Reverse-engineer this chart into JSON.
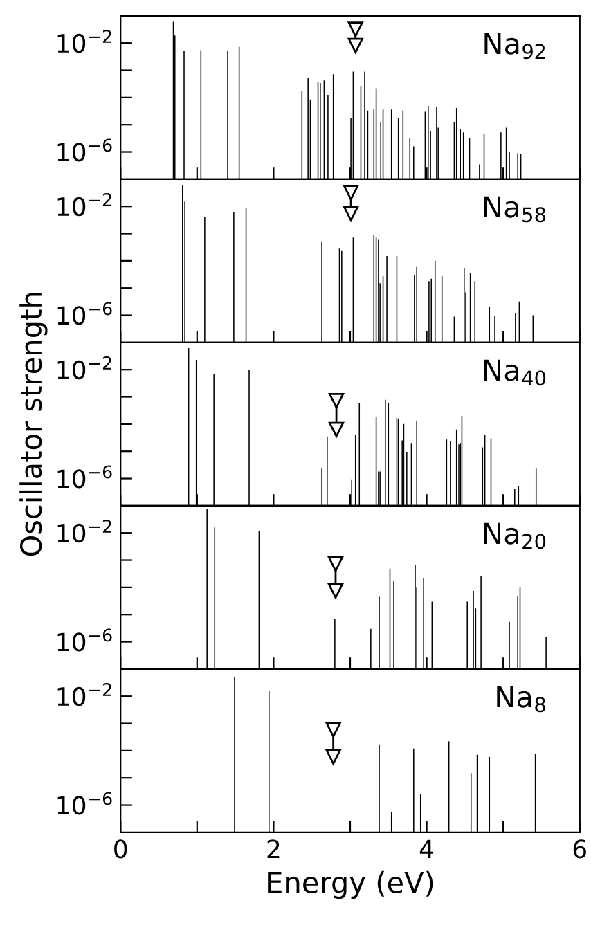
{
  "chart_data": [
    {
      "type": "bar",
      "annotations": [
        "Na$_{92}$"
      ],
      "xlim": [
        0,
        6
      ],
      "ylim": [
        1e-07,
        0.1
      ],
      "log": "y",
      "tick_labels": "y",
      "xticks": [
        {
          "value": 0,
          "label": null
        },
        {
          "value": 1,
          "label": null
        },
        {
          "value": 2,
          "label": null
        },
        {
          "value": 3,
          "label": null
        },
        {
          "value": 4,
          "label": null
        },
        {
          "value": 5,
          "label": null
        },
        {
          "value": 6,
          "label": null
        }
      ],
      "yticks": [
        {
          "value": 0.01,
          "label": "10$^{−2}$"
        },
        {
          "value": 0.001,
          "label": null
        },
        {
          "value": 0.0001,
          "label": null
        },
        {
          "value": 1e-05,
          "label": null
        },
        {
          "value": 1e-06,
          "label": "10$^{−6}$"
        }
      ],
      "series": [
        {
          "color": "#000000",
          "x": [
            0.69,
            0.71,
            0.83,
            1.05,
            1.4,
            1.55,
            2.37,
            2.45,
            2.48,
            2.58,
            2.61,
            2.66,
            2.71,
            2.78,
            3.01,
            3.04,
            3.14,
            3.19,
            3.23,
            3.31,
            3.34,
            3.4,
            3.43,
            3.54,
            3.63,
            3.69,
            3.78,
            3.83,
            3.98,
            4.02,
            4.05,
            4.13,
            4.15,
            4.36,
            4.39,
            4.44,
            4.48,
            4.56,
            4.69,
            4.75,
            4.97,
            5.04,
            5.08,
            5.19,
            5.23
          ],
          "values": [
            0.06,
            0.019,
            0.0051,
            0.0055,
            0.0051,
            0.0072,
            0.00017,
            0.00054,
            8.5e-05,
            0.00037,
            0.00034,
            0.00042,
            0.00012,
            0.00071,
            1.8e-05,
            0.00089,
            0.00025,
            0.00089,
            3.3e-05,
            3.6e-05,
            0.00022,
            1.2e-05,
            3.6e-05,
            3.6e-05,
            1.8e-05,
            3.3e-05,
            3.2e-06,
            1.6e-06,
            3e-05,
            4.9e-05,
            5.6e-06,
            4.4e-05,
            7.8e-06,
            1.2e-05,
            4.1e-05,
            6.9e-06,
            5.2e-06,
            3.2e-06,
            3.5e-07,
            4.8e-06,
            5.2e-06,
            7.8e-06,
            1e-06,
            9.1e-07,
            8.1e-07
          ]
        },
        {
          "type": "line",
          "marker": "triangle",
          "color": "#000000",
          "x": [
            3.07,
            3.07
          ],
          "values": [
            0.032,
            0.0081
          ]
        }
      ]
    },
    {
      "type": "bar",
      "annotations": [
        "Na$_{58}$"
      ],
      "xlim": [
        0,
        6
      ],
      "ylim": [
        1e-07,
        0.1
      ],
      "log": "y",
      "tick_labels": "y",
      "xticks": [
        {
          "value": 0,
          "label": null
        },
        {
          "value": 1,
          "label": null
        },
        {
          "value": 2,
          "label": null
        },
        {
          "value": 3,
          "label": null
        },
        {
          "value": 4,
          "label": null
        },
        {
          "value": 5,
          "label": null
        },
        {
          "value": 6,
          "label": null
        }
      ],
      "yticks": [
        {
          "value": 0.01,
          "label": "10$^{−2}$"
        },
        {
          "value": 0.001,
          "label": null
        },
        {
          "value": 0.0001,
          "label": null
        },
        {
          "value": 1e-05,
          "label": null
        },
        {
          "value": 1e-06,
          "label": "10$^{−6}$"
        }
      ],
      "series": [
        {
          "color": "#000000",
          "x": [
            0.81,
            0.84,
            1.1,
            1.48,
            1.64,
            2.63,
            2.86,
            2.89,
            3.04,
            3.31,
            3.34,
            3.37,
            3.39,
            3.43,
            3.48,
            3.61,
            3.84,
            3.87,
            4.03,
            4.06,
            4.11,
            4.2,
            4.36,
            4.49,
            4.51,
            4.57,
            4.63,
            4.82,
            4.89,
            5.16,
            5.21,
            5.39
          ],
          "values": [
            0.062,
            0.015,
            0.0041,
            0.006,
            0.0089,
            0.00049,
            0.00028,
            0.00023,
            0.00072,
            0.00087,
            0.00072,
            0.00059,
            1.5e-05,
            2.7e-05,
            0.00015,
            0.00015,
            3e-05,
            5.9e-05,
            1.8e-05,
            2.2e-05,
            0.0001,
            2.7e-05,
            8.9e-07,
            5.4e-05,
            6.9e-06,
            3.5e-05,
            1.8e-05,
            2e-06,
            9.3e-07,
            1.2e-06,
            3.2e-06,
            1e-06
          ]
        },
        {
          "type": "line",
          "marker": "triangle",
          "color": "#000000",
          "x": [
            3.01,
            3.01
          ],
          "values": [
            0.032,
            0.0054
          ]
        }
      ]
    },
    {
      "type": "bar",
      "annotations": [
        "Na$_{40}$"
      ],
      "ylabel": "Oscillator strength",
      "xlim": [
        0,
        6
      ],
      "ylim": [
        1e-07,
        0.1
      ],
      "log": "y",
      "tick_labels": "y",
      "xticks": [
        {
          "value": 0,
          "label": null
        },
        {
          "value": 1,
          "label": null
        },
        {
          "value": 2,
          "label": null
        },
        {
          "value": 3,
          "label": null
        },
        {
          "value": 4,
          "label": null
        },
        {
          "value": 5,
          "label": null
        },
        {
          "value": 6,
          "label": null
        }
      ],
      "yticks": [
        {
          "value": 0.01,
          "label": "10$^{−2}$"
        },
        {
          "value": 0.001,
          "label": null
        },
        {
          "value": 0.0001,
          "label": null
        },
        {
          "value": 1e-05,
          "label": null
        },
        {
          "value": 1e-06,
          "label": "10$^{−6}$"
        }
      ],
      "series": [
        {
          "color": "#000000",
          "x": [
            0.89,
            0.99,
            1.22,
            1.68,
            2.63,
            2.7,
            3.02,
            3.07,
            3.12,
            3.34,
            3.37,
            3.39,
            3.46,
            3.5,
            3.61,
            3.63,
            3.68,
            3.7,
            3.74,
            3.8,
            3.87,
            4.26,
            4.31,
            4.39,
            4.42,
            4.44,
            4.46,
            4.73,
            4.76,
            4.84,
            5.15,
            5.2,
            5.43
          ],
          "values": [
            0.062,
            0.023,
            0.0068,
            0.01,
            2.3e-06,
            3.5e-05,
            9.3e-07,
            4e-05,
            0.0006,
            0.00019,
            1.8e-06,
            1.8e-06,
            0.00078,
            0.0006,
            0.00017,
            0.00015,
            2.5e-05,
            0.0001,
            9.5e-06,
            2e-05,
            0.00013,
            2.7e-05,
            2.4e-05,
            6.3e-05,
            1.8e-05,
            2e-05,
            0.0002,
            1.4e-05,
            4e-05,
            3e-05,
            4.3e-07,
            5.2e-07,
            2.3e-06
          ]
        },
        {
          "type": "line",
          "marker": "triangle",
          "color": "#000000",
          "x": [
            2.82,
            2.82
          ],
          "values": [
            0.00072,
            6.3e-05
          ]
        }
      ]
    },
    {
      "type": "bar",
      "annotations": [
        "Na$_{20}$"
      ],
      "xlim": [
        0,
        6
      ],
      "ylim": [
        1e-07,
        0.1
      ],
      "log": "y",
      "tick_labels": "y",
      "xticks": [
        {
          "value": 0,
          "label": null
        },
        {
          "value": 1,
          "label": null
        },
        {
          "value": 2,
          "label": null
        },
        {
          "value": 3,
          "label": null
        },
        {
          "value": 4,
          "label": null
        },
        {
          "value": 5,
          "label": null
        },
        {
          "value": 6,
          "label": null
        }
      ],
      "yticks": [
        {
          "value": 0.01,
          "label": "10$^{−2}$"
        },
        {
          "value": 0.001,
          "label": null
        },
        {
          "value": 0.0001,
          "label": null
        },
        {
          "value": 1e-05,
          "label": null
        },
        {
          "value": 1e-06,
          "label": "10$^{−6}$"
        }
      ],
      "series": [
        {
          "color": "#000000",
          "x": [
            1.13,
            1.23,
            1.81,
            2.8,
            3.27,
            3.38,
            3.52,
            3.57,
            3.85,
            3.87,
            3.96,
            4.07,
            4.53,
            4.61,
            4.64,
            4.71,
            5.08,
            5.19,
            5.22,
            5.56
          ],
          "values": [
            0.079,
            0.016,
            0.012,
            6.9e-06,
            3e-06,
            4.5e-05,
            0.00049,
            0.00017,
            0.00066,
            9.8e-05,
            0.00022,
            3e-05,
            3e-05,
            7.4e-05,
            1.7e-05,
            0.00026,
            5.4e-06,
            4.8e-05,
            9.8e-05,
            1.5e-06
          ]
        },
        {
          "type": "line",
          "marker": "triangle",
          "color": "#000000",
          "x": [
            2.81,
            2.81
          ],
          "values": [
            0.00072,
            7.4e-05
          ]
        }
      ]
    },
    {
      "type": "bar",
      "annotations": [
        "Na$_{8}$"
      ],
      "xlabel": "Energy (eV)",
      "xlim": [
        0,
        6
      ],
      "ylim": [
        1e-07,
        0.1
      ],
      "log": "y",
      "xticks": [
        0,
        {
          "value": 1,
          "label": null
        },
        2,
        {
          "value": 3,
          "label": null
        },
        4,
        {
          "value": 5,
          "label": null
        },
        6
      ],
      "yticks": [
        {
          "value": 0.01,
          "label": "10$^{−2}$"
        },
        {
          "value": 0.001,
          "label": null
        },
        {
          "value": 0.0001,
          "label": null
        },
        {
          "value": 1e-05,
          "label": null
        },
        {
          "value": 1e-06,
          "label": "10$^{−6}$"
        }
      ],
      "series": [
        {
          "color": "#000000",
          "x": [
            1.49,
            1.94,
            3.38,
            3.54,
            3.83,
            3.92,
            4.29,
            4.58,
            4.66,
            4.82,
            5.42
          ],
          "values": [
            0.05,
            0.016,
            0.00017,
            5.5e-07,
            0.00012,
            2.6e-06,
            0.00022,
            1.5e-05,
            7.1e-05,
            5.9e-05,
            7.6e-05
          ]
        },
        {
          "type": "line",
          "marker": "triangle",
          "color": "#000000",
          "x": [
            2.78,
            2.78
          ],
          "values": [
            0.00059,
            5.9e-05
          ]
        }
      ]
    }
  ]
}
